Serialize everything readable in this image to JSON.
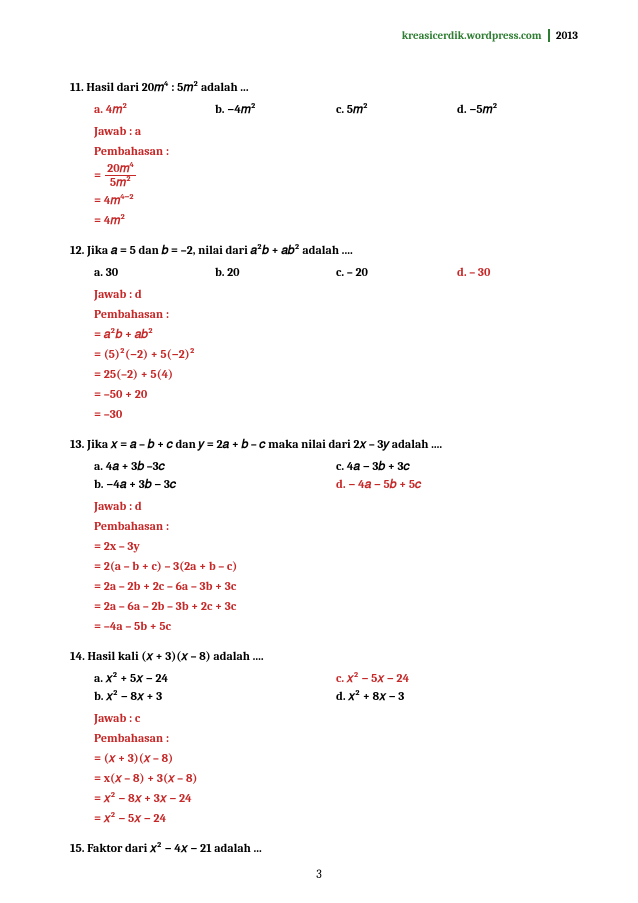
{
  "header": {
    "site": "kreasicerdik.wordpress.com",
    "year": "2013"
  },
  "page_number": "3",
  "q11": {
    "title": "11. Hasil dari 20𝑚⁴ : 5𝑚² adalah ...",
    "a": "a.    4𝑚²",
    "b": "b.    −4𝑚²",
    "c": "c.    5𝑚²",
    "d": "d.    −5𝑚²",
    "jawab": "Jawab : a",
    "pemb": "Pembahasan :",
    "num": "20𝑚⁴",
    "den": "5𝑚²",
    "l2": "= 4𝑚⁴⁻²",
    "l3": "= 4𝑚²"
  },
  "q12": {
    "title": "12. Jika 𝑎 = 5 dan 𝑏 = –2, nilai dari   𝑎²𝑏 +  𝑎𝑏²  adalah ....",
    "a": "a.    30",
    "b": "b.    20",
    "c": "c.    – 20",
    "d": "d.    – 30",
    "jawab": "Jawab : d",
    "pemb": "Pembahasan :",
    "l1": "=  𝑎²𝑏 + 𝑎𝑏²",
    "l2": "=  (5)²(−2) + 5(−2)²",
    "l3": "=  25(–2) + 5(4)",
    "l4": "=  –50 + 20",
    "l5": "=  –30"
  },
  "q13": {
    "title": "13. Jika 𝑥 = 𝑎 – 𝑏 + 𝑐 dan 𝑦 = 2𝑎 + 𝑏 – 𝑐 maka nilai dari 2𝑥 – 3𝑦 adalah ....",
    "a": "a.    4𝑎 + 3𝑏 –3𝑐",
    "b": "b.    −4𝑎 + 3𝑏 − 3𝑐",
    "c": "c.    4𝑎 − 3𝑏 + 3𝑐",
    "d": "d.    − 4𝑎 − 5𝑏 + 5𝑐",
    "jawab": "Jawab : d",
    "pemb": "Pembahasan :",
    "l1": "= 2x – 3y",
    "l2": "= 2(a – b + c) – 3(2a + b – c)",
    "l3": "= 2a – 2b + 2c – 6a – 3b + 3c",
    "l4": "= 2a – 6a – 2b – 3b + 2c + 3c",
    "l5": "= –4a – 5b + 5c"
  },
  "q14": {
    "title": "14.  Hasil kali (𝑥 + 3)(𝑥 – 8) adalah ....",
    "a": "a.    𝑥² + 5𝑥 − 24",
    "b": "b.    𝑥² − 8𝑥 + 3",
    "c": "c.    𝑥² − 5𝑥 − 24",
    "d": "d.    𝑥² + 8𝑥 − 3",
    "jawab": "Jawab : c",
    "pemb": "Pembahasan :",
    "l1": "= (𝑥 + 3)(𝑥 – 8)",
    "l2": "= x(𝑥 – 8) + 3(𝑥 – 8)",
    "l3": "=   𝑥² − 8𝑥 + 3𝑥 − 24",
    "l4": "=   𝑥² − 5𝑥 − 24"
  },
  "q15": {
    "title": "15. Faktor dari 𝑥² −  4𝑥 − 21   adalah ..."
  }
}
